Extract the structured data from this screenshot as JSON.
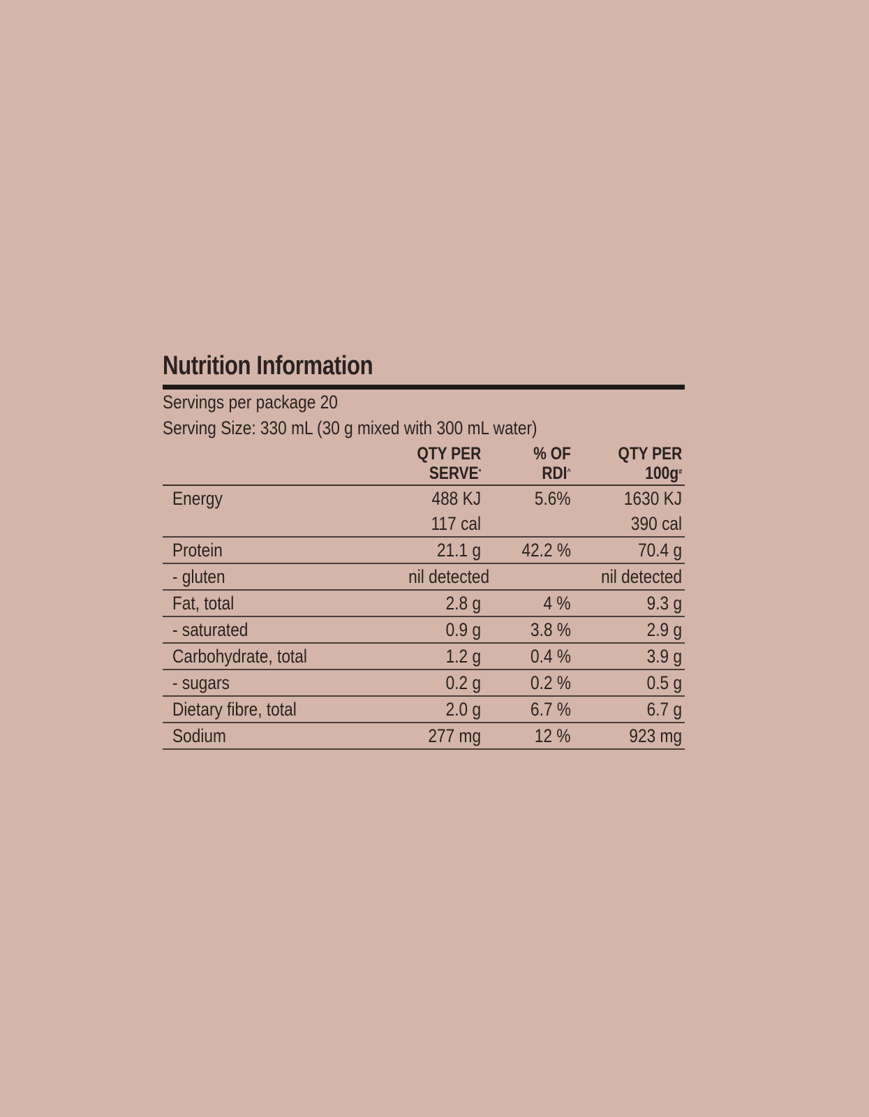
{
  "title": "Nutrition Information",
  "servings_per_package": "Servings per package 20",
  "serving_size": "Serving Size: 330 mL (30 g mixed with 300 mL water)",
  "headers": [
    {
      "line1": "QTY PER",
      "line2": "SERVE",
      "mark": "*"
    },
    {
      "line1": "% OF",
      "line2": "RDI",
      "mark": "^"
    },
    {
      "line1": "QTY PER",
      "line2": "100g",
      "mark": "#"
    }
  ],
  "rows": [
    {
      "label": "Energy",
      "serve": "488 KJ",
      "rdi": "5.6%",
      "per100": "1630 KJ"
    },
    {
      "label": "",
      "serve": "117 cal",
      "rdi": "",
      "per100": "390 cal"
    },
    {
      "label": "Protein",
      "serve": "21.1 g",
      "rdi": "42.2 %",
      "per100": "70.4 g"
    },
    {
      "label": "- gluten",
      "serve": "nil detected",
      "rdi": "",
      "per100": "nil detected"
    },
    {
      "label": "Fat, total",
      "serve": "2.8 g",
      "rdi": "4 %",
      "per100": "9.3 g"
    },
    {
      "label": "- saturated",
      "serve": "0.9 g",
      "rdi": "3.8 %",
      "per100": "2.9 g"
    },
    {
      "label": "Carbohydrate, total",
      "serve": "1.2 g",
      "rdi": "0.4 %",
      "per100": "3.9 g"
    },
    {
      "label": "- sugars",
      "serve": "0.2 g",
      "rdi": "0.2 %",
      "per100": "0.5 g"
    },
    {
      "label": "Dietary fibre, total",
      "serve": "2.0 g",
      "rdi": "6.7 %",
      "per100": "6.7 g"
    },
    {
      "label": "Sodium",
      "serve": "277 mg",
      "rdi": "12 %",
      "per100": "923 mg"
    }
  ]
}
